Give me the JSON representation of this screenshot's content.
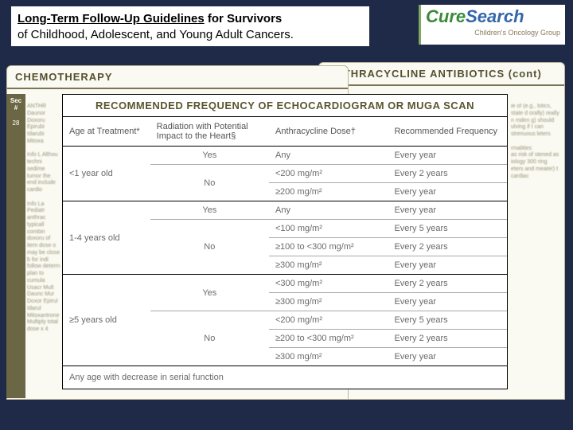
{
  "title": {
    "bold": "Long-Term Follow-Up Guidelines",
    "rest1": " for Survivors",
    "line2": "of Childhood, Adolescent, and Young Adult Cancers."
  },
  "logo": {
    "brand_c": "Cure",
    "brand_s": "Search",
    "sub": "Children's Oncology Group"
  },
  "bg": {
    "left_head": "CHEMOTHERAPY",
    "right_head": "ANTHRACYCLINE ANTIBIOTICS (cont)",
    "sec_label": "Sec\n#",
    "sec_num": "28",
    "left_blur": "ANTHR Daunor Doxoru Epirubi Idarubi Mitoxa\n\nInfo L Althou techni sedime tumor the end include cardio\n\nInfo La Pediatr anthrac typicall combin doxoru of item dose o may be close b for indi follow determ plan to cumula Usacr Mult Daunc Mur Doxor Epirul Idarul Mitoxantrone Multiply total dose x 4",
    "right_blur": "ie of (e.g., lotics, state d orally) really n mden g) should ulving if t can strenuous leters\n\nrmalities\nas risk of stened as iology 300 ring eters and meater) t cardiac"
  },
  "table": {
    "title": "RECOMMENDED FREQUENCY OF ECHOCARDIOGRAM OR MUGA SCAN",
    "headers": {
      "age": "Age at Treatment*",
      "rad": "Radiation with Potential Impact to the Heart§",
      "dose": "Anthracycline Dose†",
      "freq": "Recommended Frequency"
    },
    "groups": [
      {
        "age": "<1 year old",
        "rows": [
          {
            "rad": "Yes",
            "dose": "Any",
            "freq": "Every year",
            "radspan": 1
          },
          {
            "rad": "No",
            "dose": "<200 mg/m²",
            "freq": "Every 2 years",
            "radspan": 2
          },
          {
            "rad": "",
            "dose": "≥200 mg/m²",
            "freq": "Every year"
          }
        ]
      },
      {
        "age": "1-4 years old",
        "rows": [
          {
            "rad": "Yes",
            "dose": "Any",
            "freq": "Every year",
            "radspan": 1
          },
          {
            "rad": "No",
            "dose": "<100 mg/m²",
            "freq": "Every 5 years",
            "radspan": 3
          },
          {
            "rad": "",
            "dose": "≥100 to <300 mg/m²",
            "freq": "Every 2 years"
          },
          {
            "rad": "",
            "dose": "≥300 mg/m²",
            "freq": "Every year"
          }
        ]
      },
      {
        "age": "≥5 years old",
        "rows": [
          {
            "rad": "Yes",
            "dose": "<300 mg/m²",
            "freq": "Every 2 years",
            "radspan": 2
          },
          {
            "rad": "",
            "dose": "≥300 mg/m²",
            "freq": "Every year"
          },
          {
            "rad": "No",
            "dose": "<200 mg/m²",
            "freq": "Every 5 years",
            "radspan": 3
          },
          {
            "rad": "",
            "dose": "≥200 to <300 mg/m²",
            "freq": "Every 2 years"
          },
          {
            "rad": "",
            "dose": "≥300 mg/m²",
            "freq": "Every year"
          }
        ]
      }
    ],
    "footer": "Any age with decrease in serial function"
  },
  "colors": {
    "page_bg": "#1e2a47",
    "card_bg": "#faf9f2",
    "accent": "#6b6644"
  }
}
